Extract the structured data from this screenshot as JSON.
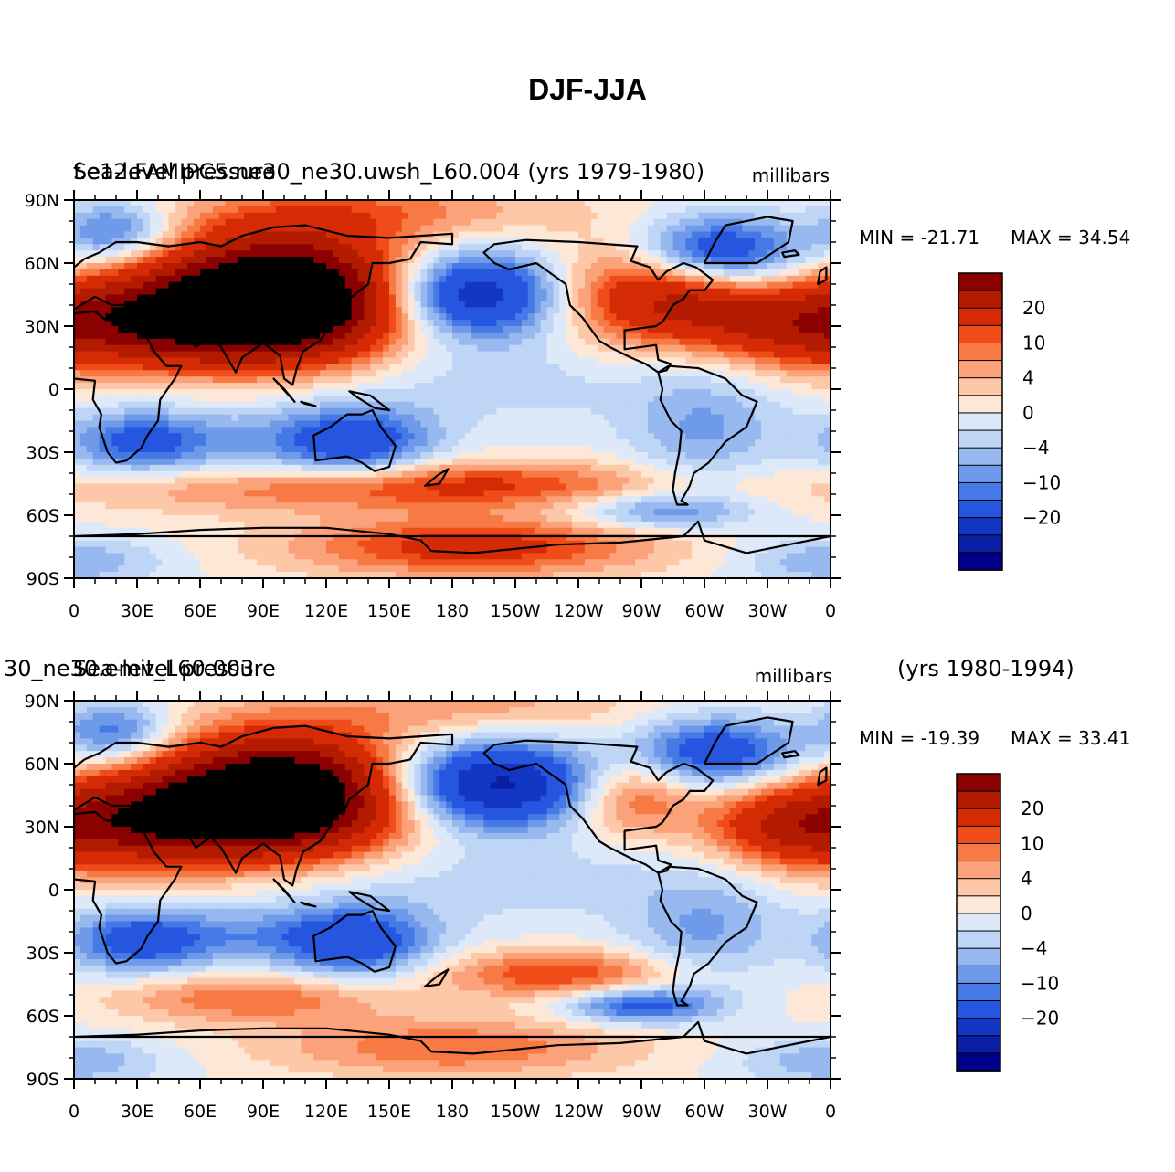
{
  "title": "DJF-JJA",
  "chart_data": [
    {
      "type": "heatmap",
      "title_left_overprinted": [
        "Sea-level pressure",
        "f.e12.FAMIPC5.ne30_ne30.uwsh_L60.004 (yrs 1979-1980)"
      ],
      "units": "millibars",
      "min_label": "MIN = -21.71",
      "max_label": "MAX =  34.54",
      "min": -21.71,
      "max": 34.54,
      "x_ticks": [
        "0",
        "30E",
        "60E",
        "90E",
        "120E",
        "150E",
        "180",
        "150W",
        "120W",
        "90W",
        "60W",
        "30W",
        "0"
      ],
      "y_ticks": [
        "90N",
        "60N",
        "30N",
        "0",
        "30S",
        "60S",
        "90S"
      ],
      "colorbar_labels": [
        "20",
        "10",
        "4",
        "0",
        "-4",
        "-10",
        "-20"
      ],
      "contour_levels": [
        -25,
        -20,
        -15,
        -10,
        -8,
        -6,
        -4,
        -2,
        0,
        2,
        4,
        6,
        8,
        10,
        15,
        20,
        25
      ],
      "grid": false
    },
    {
      "type": "heatmap",
      "title_left_overprinted": [
        "Sea-level pressure",
        "30_ne30.emit_L60.003"
      ],
      "title_right": "(yrs 1980-1994)",
      "units": "millibars",
      "min_label": "MIN = -19.39",
      "max_label": "MAX =  33.41",
      "min": -19.39,
      "max": 33.41,
      "x_ticks": [
        "0",
        "30E",
        "60E",
        "90E",
        "120E",
        "150E",
        "180",
        "150W",
        "120W",
        "90W",
        "60W",
        "30W",
        "0"
      ],
      "y_ticks": [
        "90N",
        "60N",
        "30N",
        "0",
        "30S",
        "60S",
        "90S"
      ],
      "colorbar_labels": [
        "20",
        "10",
        "4",
        "0",
        "-4",
        "-10",
        "-20"
      ],
      "contour_levels": [
        -25,
        -20,
        -15,
        -10,
        -8,
        -6,
        -4,
        -2,
        0,
        2,
        4,
        6,
        8,
        10,
        15,
        20,
        25
      ],
      "grid": false
    }
  ],
  "palette": [
    "#8b0000",
    "#b31b00",
    "#d52b05",
    "#f04c1a",
    "#f77a45",
    "#fba27a",
    "#fdc8a8",
    "#fde8d8",
    "#dde9f9",
    "#bed5f5",
    "#98b9ef",
    "#6f9aea",
    "#457ae6",
    "#2656e0",
    "#1336c4",
    "#0a1fa3",
    "#00008b"
  ]
}
